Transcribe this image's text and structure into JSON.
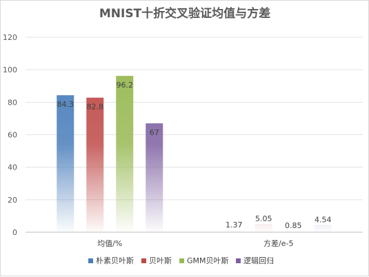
{
  "chart_data": {
    "type": "bar",
    "title": "MNIST十折交叉验证均值与方差",
    "categories": [
      "均值/%",
      "方差/e-5"
    ],
    "ylim": [
      0,
      120
    ],
    "yticks": [
      0,
      20,
      40,
      60,
      80,
      100,
      120
    ],
    "grid": true,
    "legend_position": "bottom",
    "series": [
      {
        "name": "朴素贝叶斯",
        "values": [
          84.3,
          1.37
        ],
        "labels": [
          "84.3",
          "1.37"
        ],
        "color": "#4a7ebb"
      },
      {
        "name": "贝叶斯",
        "values": [
          82.8,
          5.05
        ],
        "labels": [
          "82.8",
          "5.05"
        ],
        "color": "#be4b48"
      },
      {
        "name": "GMM贝叶斯",
        "values": [
          96.2,
          0.85
        ],
        "labels": [
          "96.2",
          "0.85"
        ],
        "color": "#98b954"
      },
      {
        "name": "逻辑回归",
        "values": [
          67,
          4.54
        ],
        "labels": [
          "67",
          "4.54"
        ],
        "color": "#7d60a0"
      }
    ]
  }
}
